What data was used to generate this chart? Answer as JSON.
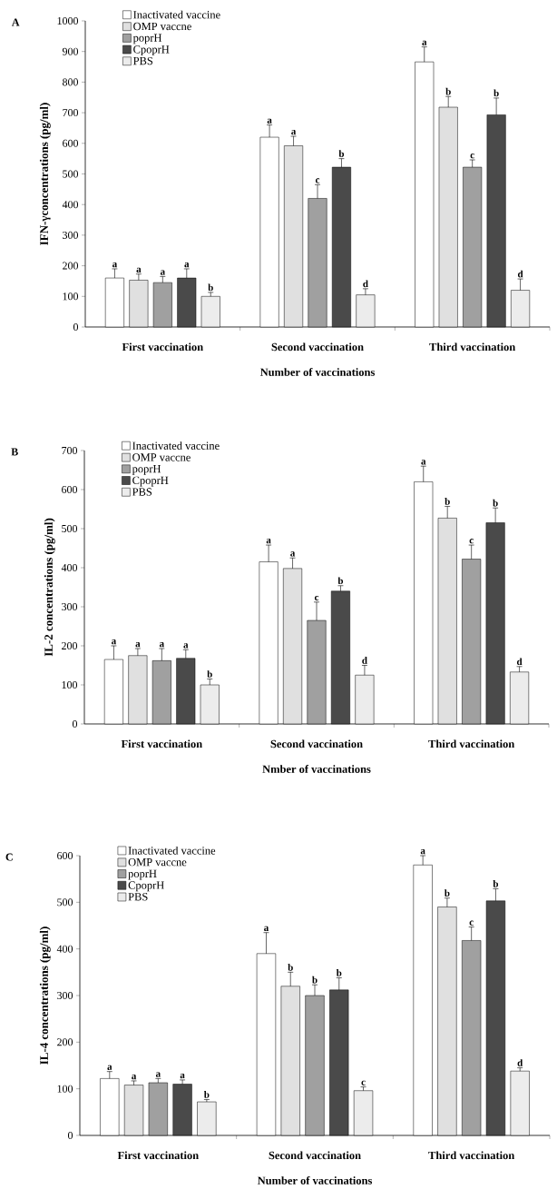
{
  "chart_data": [
    {
      "type": "bar",
      "title": "A",
      "xlabel": "Number of vaccinations",
      "ylabel": "IFN-γconcentrations (pg/ml)",
      "categories": [
        "First vaccination",
        "Second vaccination",
        "Third vaccination"
      ],
      "ylim": [
        0,
        1000
      ],
      "yticks": [
        0,
        100,
        200,
        300,
        400,
        500,
        600,
        700,
        800,
        900,
        1000
      ],
      "legend": "top left",
      "series": [
        {
          "name": "Inactivated vaccine",
          "color": "#ffffff",
          "values": [
            160,
            620,
            866
          ],
          "errors": [
            [
              160,
              190
            ],
            [
              620,
              660
            ],
            [
              866,
              915
            ]
          ],
          "value_labels": [
            "a",
            "a",
            "a"
          ]
        },
        {
          "name": "OMP vaccne",
          "color": "#e0e0e0",
          "values": [
            153,
            592,
            718
          ],
          "errors": [
            [
              153,
              173
            ],
            [
              592,
              623
            ],
            [
              718,
              753
            ]
          ],
          "value_labels": [
            "a",
            "a",
            "b"
          ]
        },
        {
          "name": "poprH",
          "color": "#a0a0a0",
          "values": [
            145,
            420,
            522
          ],
          "errors": [
            [
              145,
              165
            ],
            [
              420,
              465
            ],
            [
              522,
              546
            ]
          ],
          "value_labels": [
            "a",
            "c",
            "c"
          ]
        },
        {
          "name": "CpoprH",
          "color": "#4a4a4a",
          "values": [
            160,
            522,
            693
          ],
          "errors": [
            [
              160,
              190
            ],
            [
              522,
              550
            ],
            [
              693,
              748
            ]
          ],
          "value_labels": [
            "a",
            "b",
            "b"
          ]
        },
        {
          "name": "PBS",
          "color": "#ececec",
          "values": [
            100,
            105,
            120
          ],
          "errors": [
            [
              100,
              113
            ],
            [
              105,
              125
            ],
            [
              120,
              157
            ]
          ],
          "value_labels": [
            "b",
            "d",
            "d"
          ]
        }
      ]
    },
    {
      "type": "bar",
      "title": "B",
      "xlabel": "Nmber of vaccinations",
      "ylabel": "IL-2 concentrations (pg/ml)",
      "categories": [
        "First vaccination",
        "Second vaccination",
        "Third vaccination"
      ],
      "ylim": [
        0,
        700
      ],
      "yticks": [
        0,
        100,
        200,
        300,
        400,
        500,
        600,
        700
      ],
      "legend": "top left",
      "series": [
        {
          "name": "Inactivated vaccine",
          "color": "#ffffff",
          "values": [
            165,
            415,
            620
          ],
          "errors": [
            [
              165,
              200
            ],
            [
              415,
              458
            ],
            [
              620,
              660
            ]
          ],
          "value_labels": [
            "a",
            "a",
            "a"
          ]
        },
        {
          "name": "OMP vaccne",
          "color": "#e0e0e0",
          "values": [
            175,
            398,
            527
          ],
          "errors": [
            [
              175,
              193
            ],
            [
              398,
              425
            ],
            [
              527,
              557
            ]
          ],
          "value_labels": [
            "a",
            "a",
            "b"
          ]
        },
        {
          "name": "poprH",
          "color": "#a0a0a0",
          "values": [
            162,
            265,
            422
          ],
          "errors": [
            [
              162,
              193
            ],
            [
              265,
              312
            ],
            [
              422,
              458
            ]
          ],
          "value_labels": [
            "a",
            "c",
            "c"
          ]
        },
        {
          "name": "CpoprH",
          "color": "#4a4a4a",
          "values": [
            168,
            340,
            515
          ],
          "errors": [
            [
              168,
              190
            ],
            [
              340,
              354
            ],
            [
              515,
              553
            ]
          ],
          "value_labels": [
            "a",
            "b",
            "b"
          ]
        },
        {
          "name": "PBS",
          "color": "#ececec",
          "values": [
            100,
            125,
            133
          ],
          "errors": [
            [
              100,
              115
            ],
            [
              125,
              150
            ],
            [
              133,
              147
            ]
          ],
          "value_labels": [
            "b",
            "d",
            "d"
          ]
        }
      ]
    },
    {
      "type": "bar",
      "title": "C",
      "xlabel": "Number of vaccinations",
      "ylabel": "IL-4  concentrations (pg/ml)",
      "categories": [
        "First vaccination",
        "Second vaccination",
        "Third vaccination"
      ],
      "ylim": [
        0,
        600
      ],
      "yticks": [
        0,
        100,
        200,
        300,
        400,
        500,
        600
      ],
      "legend": "top left",
      "series": [
        {
          "name": "Inactivated vaccine",
          "color": "#ffffff",
          "values": [
            122,
            390,
            580
          ],
          "errors": [
            [
              122,
              137
            ],
            [
              390,
              435
            ],
            [
              580,
              600
            ]
          ],
          "value_labels": [
            "a",
            "a",
            "a"
          ]
        },
        {
          "name": "OMP vaccne",
          "color": "#e0e0e0",
          "values": [
            108,
            320,
            490
          ],
          "errors": [
            [
              108,
              117
            ],
            [
              320,
              350
            ],
            [
              490,
              509
            ]
          ],
          "value_labels": [
            "a",
            "b",
            "b"
          ]
        },
        {
          "name": "poprH",
          "color": "#a0a0a0",
          "values": [
            113,
            300,
            418
          ],
          "errors": [
            [
              113,
              122
            ],
            [
              300,
              323
            ],
            [
              418,
              447
            ]
          ],
          "value_labels": [
            "a",
            "b",
            "c"
          ]
        },
        {
          "name": "CpoprH",
          "color": "#4a4a4a",
          "values": [
            110,
            312,
            503
          ],
          "errors": [
            [
              110,
              119
            ],
            [
              312,
              338
            ],
            [
              503,
              529
            ]
          ],
          "value_labels": [
            "a",
            "b",
            "b"
          ]
        },
        {
          "name": "PBS",
          "color": "#ececec",
          "values": [
            72,
            96,
            138
          ],
          "errors": [
            [
              72,
              77
            ],
            [
              96,
              104
            ],
            [
              138,
              145
            ]
          ],
          "value_labels": [
            "b",
            "c",
            "d"
          ]
        }
      ]
    }
  ]
}
